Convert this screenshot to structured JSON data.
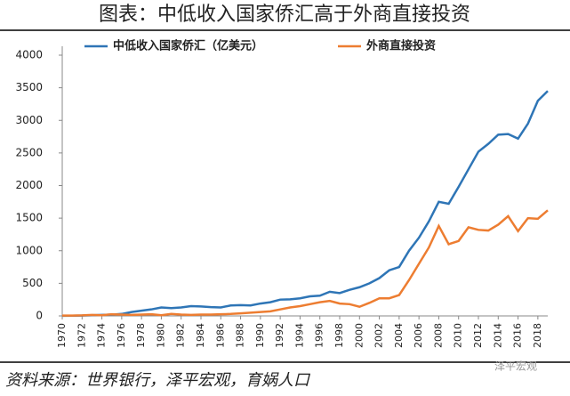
{
  "chart_data": {
    "type": "line",
    "title": "图表：中低收入国家侨汇高于外商直接投资",
    "source": "资料来源：世界银行，泽平宏观，育娲人口",
    "watermark": "泽平宏观",
    "x": [
      1970,
      1971,
      1972,
      1973,
      1974,
      1975,
      1976,
      1977,
      1978,
      1979,
      1980,
      1981,
      1982,
      1983,
      1984,
      1985,
      1986,
      1987,
      1988,
      1989,
      1990,
      1991,
      1992,
      1993,
      1994,
      1995,
      1996,
      1997,
      1998,
      1999,
      2000,
      2001,
      2002,
      2003,
      2004,
      2005,
      2006,
      2007,
      2008,
      2009,
      2010,
      2011,
      2012,
      2013,
      2014,
      2015,
      2016,
      2017,
      2018,
      2019
    ],
    "series": [
      {
        "name": "中低收入国家侨汇（亿美元）",
        "color": "#2E75B6",
        "values": [
          2,
          3,
          5,
          10,
          15,
          20,
          30,
          60,
          80,
          100,
          130,
          120,
          130,
          150,
          145,
          135,
          130,
          160,
          165,
          160,
          190,
          210,
          250,
          255,
          270,
          300,
          310,
          370,
          350,
          400,
          440,
          500,
          580,
          700,
          750,
          1000,
          1200,
          1450,
          1750,
          1720,
          1980,
          2250,
          2520,
          2640,
          2780,
          2790,
          2720,
          2950,
          3300,
          3450
        ]
      },
      {
        "name": "外商直接投资",
        "color": "#ED7D31",
        "values": [
          5,
          5,
          8,
          15,
          10,
          25,
          20,
          15,
          20,
          25,
          10,
          30,
          20,
          15,
          20,
          20,
          25,
          30,
          40,
          50,
          60,
          70,
          100,
          130,
          150,
          180,
          210,
          230,
          190,
          180,
          140,
          200,
          270,
          270,
          320,
          550,
          800,
          1050,
          1380,
          1100,
          1150,
          1360,
          1320,
          1310,
          1400,
          1530,
          1300,
          1500,
          1490,
          1620
        ]
      }
    ],
    "xlim": [
      1970,
      2019
    ],
    "xticks": [
      1970,
      1972,
      1974,
      1976,
      1978,
      1980,
      1982,
      1984,
      1986,
      1988,
      1990,
      1992,
      1994,
      1996,
      1998,
      2000,
      2002,
      2004,
      2006,
      2008,
      2010,
      2012,
      2014,
      2016,
      2018
    ],
    "ylim": [
      0,
      4000
    ],
    "yticks": [
      0,
      500,
      1000,
      1500,
      2000,
      2500,
      3000,
      3500,
      4000
    ],
    "grid": false,
    "legend": "top"
  }
}
